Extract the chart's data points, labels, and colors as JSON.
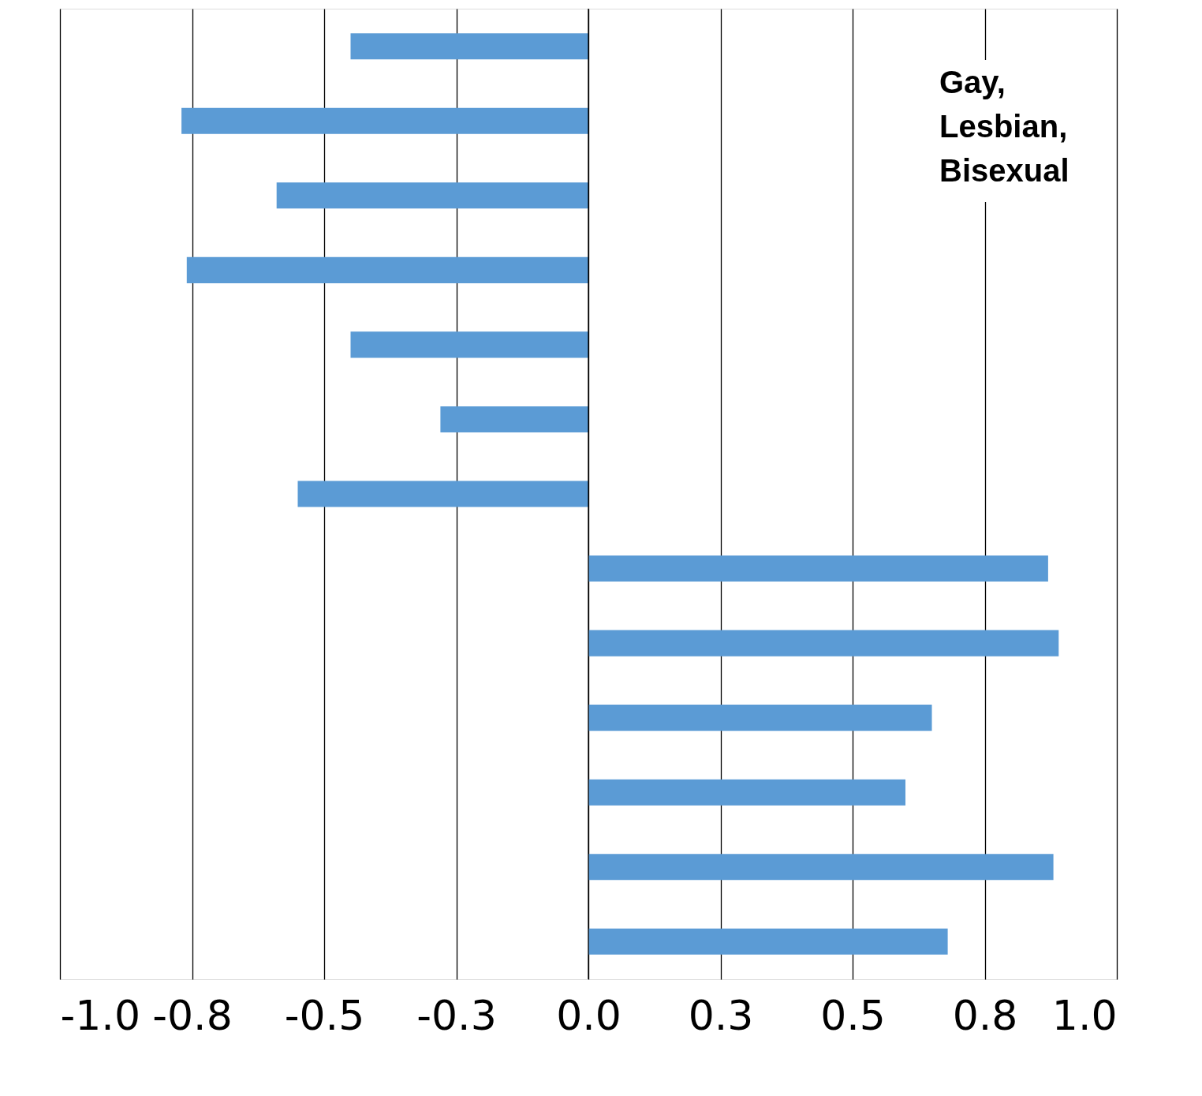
{
  "chart_data": {
    "type": "bar",
    "orientation": "horizontal",
    "categories": [
      null,
      null,
      null,
      null,
      null,
      null,
      null,
      null,
      null,
      null,
      null,
      null,
      null
    ],
    "values": [
      -0.45,
      -0.77,
      -0.59,
      -0.76,
      -0.45,
      -0.28,
      -0.55,
      0.87,
      0.89,
      0.65,
      0.6,
      0.88,
      0.68
    ],
    "color": "#5b9bd5",
    "xlim": [
      -1,
      1
    ],
    "xticks": [
      {
        "value": -1,
        "label": "-1.0"
      },
      {
        "value": -0.75,
        "label": "-0.8"
      },
      {
        "value": -0.5,
        "label": "-0.5"
      },
      {
        "value": -0.25,
        "label": "-0.3"
      },
      {
        "value": 0,
        "label": "0.0"
      },
      {
        "value": 0.25,
        "label": "0.3"
      },
      {
        "value": 0.5,
        "label": "0.5"
      },
      {
        "value": 0.75,
        "label": "0.8"
      },
      {
        "value": 1,
        "label": "1.0"
      }
    ],
    "grid": "x",
    "tick_labels": "x",
    "annotations": [
      "Gay, Lesbian, Bisexual"
    ]
  }
}
